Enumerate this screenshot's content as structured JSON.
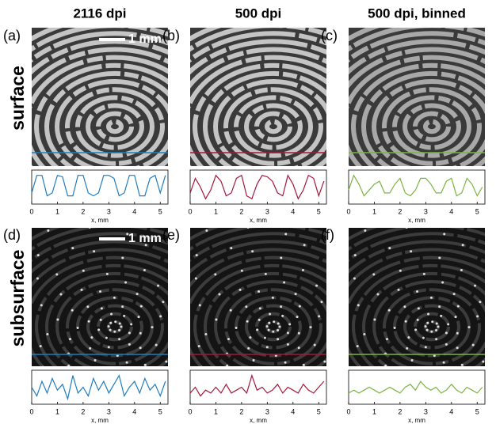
{
  "header": {
    "columns": [
      "2116 dpi",
      "500 dpi",
      "500 dpi, binned"
    ],
    "rows": [
      "surface",
      "subsurface"
    ]
  },
  "panels": [
    "(a)",
    "(b)",
    "(c)",
    "(d)",
    "(e)",
    "(f)"
  ],
  "scale_bars": [
    "1 mm",
    "1 mm"
  ],
  "chart_data": [
    {
      "type": "line",
      "color": "#1f7cc0",
      "x_label": "x, mm",
      "xlim": [
        0,
        5.3
      ],
      "xticks": [
        0,
        1,
        2,
        3,
        4,
        5
      ],
      "ylim": [
        0,
        1
      ],
      "x": [
        0,
        0.2,
        0.4,
        0.6,
        0.8,
        1,
        1.2,
        1.4,
        1.6,
        1.8,
        2,
        2.2,
        2.4,
        2.6,
        2.8,
        3,
        3.2,
        3.4,
        3.6,
        3.8,
        4,
        4.2,
        4.4,
        4.6,
        4.8,
        5,
        5.2
      ],
      "values": [
        0.3,
        0.9,
        0.9,
        0.2,
        0.3,
        0.9,
        0.85,
        0.2,
        0.2,
        0.9,
        0.9,
        0.3,
        0.2,
        0.3,
        0.9,
        0.9,
        0.8,
        0.2,
        0.3,
        0.9,
        0.9,
        0.2,
        0.2,
        0.8,
        0.9,
        0.3,
        0.9
      ]
    },
    {
      "type": "line",
      "color": "#a5173a",
      "x_label": "x, mm",
      "xlim": [
        0,
        5.3
      ],
      "xticks": [
        0,
        1,
        2,
        3,
        4,
        5
      ],
      "ylim": [
        0,
        1
      ],
      "x": [
        0,
        0.2,
        0.4,
        0.6,
        0.8,
        1,
        1.2,
        1.4,
        1.6,
        1.8,
        2,
        2.2,
        2.4,
        2.6,
        2.8,
        3,
        3.2,
        3.4,
        3.6,
        3.8,
        4,
        4.2,
        4.4,
        4.6,
        4.8,
        5,
        5.2
      ],
      "values": [
        0.3,
        0.8,
        0.5,
        0.1,
        0.4,
        0.9,
        0.7,
        0.2,
        0.3,
        0.8,
        0.9,
        0.2,
        0.1,
        0.6,
        0.9,
        0.85,
        0.7,
        0.3,
        0.2,
        0.9,
        0.6,
        0.1,
        0.4,
        0.9,
        0.8,
        0.2,
        0.7
      ]
    },
    {
      "type": "line",
      "color": "#7cb342",
      "x_label": "x, mm",
      "xlim": [
        0,
        5.3
      ],
      "xticks": [
        0,
        1,
        2,
        3,
        4,
        5
      ],
      "ylim": [
        0,
        1
      ],
      "x": [
        0,
        0.2,
        0.4,
        0.6,
        0.8,
        1,
        1.2,
        1.4,
        1.6,
        1.8,
        2,
        2.2,
        2.4,
        2.6,
        2.8,
        3,
        3.2,
        3.4,
        3.6,
        3.8,
        4,
        4.2,
        4.4,
        4.6,
        4.8,
        5,
        5.2
      ],
      "values": [
        0.4,
        0.9,
        0.6,
        0.2,
        0.4,
        0.6,
        0.7,
        0.3,
        0.3,
        0.6,
        0.8,
        0.3,
        0.2,
        0.4,
        0.8,
        0.8,
        0.6,
        0.3,
        0.3,
        0.7,
        0.8,
        0.2,
        0.3,
        0.8,
        0.6,
        0.2,
        0.5
      ]
    },
    {
      "type": "line",
      "color": "#1f7cc0",
      "x_label": "x, mm",
      "xlim": [
        0,
        5.3
      ],
      "xticks": [
        0,
        1,
        2,
        3,
        4,
        5
      ],
      "ylim": [
        0,
        1
      ],
      "x": [
        0,
        0.2,
        0.4,
        0.6,
        0.8,
        1,
        1.2,
        1.4,
        1.6,
        1.8,
        2,
        2.2,
        2.4,
        2.6,
        2.8,
        3,
        3.2,
        3.4,
        3.6,
        3.8,
        4,
        4.2,
        4.4,
        4.6,
        4.8,
        5,
        5.2
      ],
      "values": [
        0.5,
        0.2,
        0.7,
        0.3,
        0.8,
        0.4,
        0.6,
        0.1,
        0.9,
        0.3,
        0.5,
        0.2,
        0.8,
        0.4,
        0.7,
        0.3,
        0.6,
        0.9,
        0.2,
        0.5,
        0.7,
        0.3,
        0.8,
        0.4,
        0.6,
        0.2,
        0.7
      ]
    },
    {
      "type": "line",
      "color": "#a5173a",
      "x_label": "x, mm",
      "xlim": [
        0,
        5.3
      ],
      "xticks": [
        0,
        1,
        2,
        3,
        4,
        5
      ],
      "ylim": [
        0,
        1
      ],
      "x": [
        0,
        0.2,
        0.4,
        0.6,
        0.8,
        1,
        1.2,
        1.4,
        1.6,
        1.8,
        2,
        2.2,
        2.4,
        2.6,
        2.8,
        3,
        3.2,
        3.4,
        3.6,
        3.8,
        4,
        4.2,
        4.4,
        4.6,
        4.8,
        5,
        5.2
      ],
      "values": [
        0.3,
        0.5,
        0.2,
        0.4,
        0.3,
        0.5,
        0.3,
        0.6,
        0.3,
        0.4,
        0.5,
        0.3,
        0.9,
        0.4,
        0.5,
        0.3,
        0.4,
        0.6,
        0.3,
        0.5,
        0.4,
        0.3,
        0.6,
        0.4,
        0.3,
        0.5,
        0.7
      ]
    },
    {
      "type": "line",
      "color": "#7cb342",
      "x_label": "x, mm",
      "xlim": [
        0,
        5.3
      ],
      "xticks": [
        0,
        1,
        2,
        3,
        4,
        5
      ],
      "ylim": [
        0,
        1
      ],
      "x": [
        0,
        0.2,
        0.4,
        0.6,
        0.8,
        1,
        1.2,
        1.4,
        1.6,
        1.8,
        2,
        2.2,
        2.4,
        2.6,
        2.8,
        3,
        3.2,
        3.4,
        3.6,
        3.8,
        4,
        4.2,
        4.4,
        4.6,
        4.8,
        5,
        5.2
      ],
      "values": [
        0.3,
        0.4,
        0.3,
        0.4,
        0.5,
        0.4,
        0.3,
        0.4,
        0.5,
        0.4,
        0.3,
        0.5,
        0.6,
        0.4,
        0.7,
        0.5,
        0.4,
        0.5,
        0.3,
        0.4,
        0.6,
        0.4,
        0.3,
        0.5,
        0.4,
        0.3,
        0.5
      ]
    }
  ]
}
